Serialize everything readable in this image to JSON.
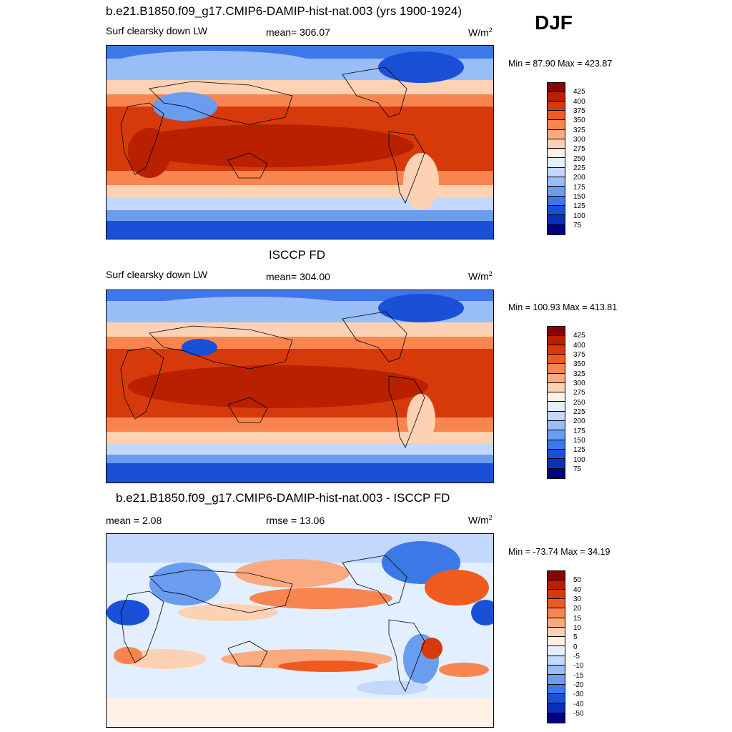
{
  "season": "DJF",
  "units_label": "W/m",
  "units_sup": "2",
  "panels": [
    {
      "title": "b.e21.B1850.f09_g17.CMIP6-DAMIP-hist-nat.003 (yrs 1900-1924)",
      "variable": "Surf clearsky down LW",
      "stat_left": "",
      "stat_mid": "mean= 306.07",
      "minmax": "Min =  87.90 Max = 423.87",
      "colorbar": [
        "425",
        "400",
        "375",
        "350",
        "325",
        "300",
        "275",
        "250",
        "225",
        "200",
        "175",
        "150",
        "125",
        "100",
        "75"
      ]
    },
    {
      "title": "ISCCP FD",
      "variable": "Surf clearsky down LW",
      "stat_left": "",
      "stat_mid": "mean= 304.00",
      "minmax": "Min = 100.93 Max = 413.81",
      "colorbar": [
        "425",
        "400",
        "375",
        "350",
        "325",
        "300",
        "275",
        "250",
        "225",
        "200",
        "175",
        "150",
        "125",
        "100",
        "75"
      ]
    },
    {
      "title": "b.e21.B1850.f09_g17.CMIP6-DAMIP-hist-nat.003 - ISCCP FD",
      "variable": "",
      "stat_left": "mean =   2.08",
      "stat_mid": "rmse =  13.06",
      "minmax": "Min = -73.74 Max =  34.19",
      "colorbar": [
        "50",
        "40",
        "30",
        "20",
        "15",
        "10",
        "5",
        "0",
        "-5",
        "-10",
        "-15",
        "-20",
        "-30",
        "-40",
        "-50"
      ]
    }
  ],
  "colors": {
    "abs_scale": [
      "#8b0000",
      "#b82000",
      "#d63a0a",
      "#ef5a1e",
      "#f88550",
      "#fbaa80",
      "#fdd2b4",
      "#fff0e6",
      "#e3efff",
      "#c2d8fc",
      "#99bdf7",
      "#6a9cf0",
      "#3d78e8",
      "#1a50d8",
      "#0a2fb8",
      "#000080"
    ],
    "diff_scale": [
      "#8b0000",
      "#b82000",
      "#d63a0a",
      "#ef5a1e",
      "#f88550",
      "#fbaa80",
      "#fdd2b4",
      "#fff0e6",
      "#e3efff",
      "#c2d8fc",
      "#99bdf7",
      "#6a9cf0",
      "#3d78e8",
      "#1a50d8",
      "#0a2fb8",
      "#000080"
    ]
  }
}
